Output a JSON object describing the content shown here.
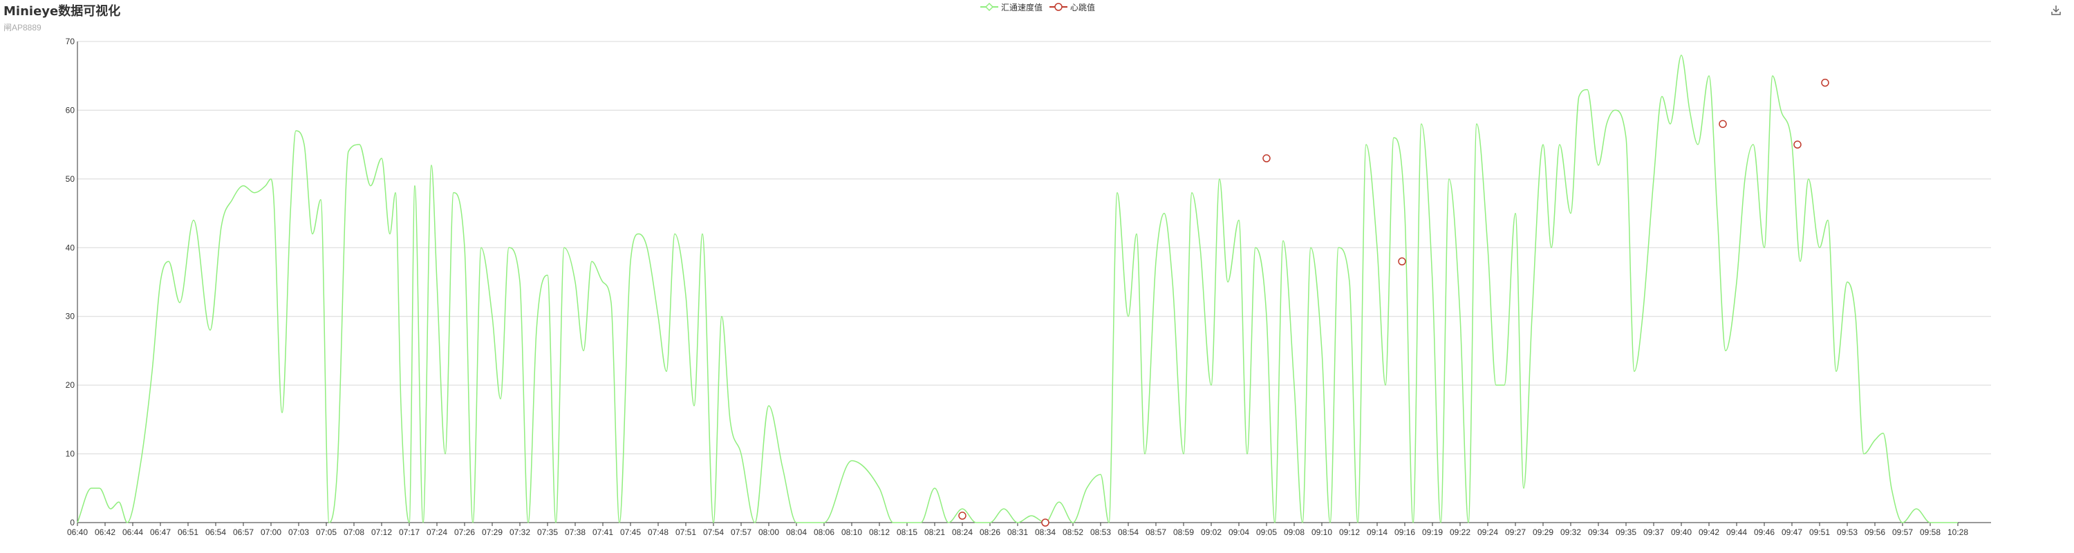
{
  "header": {
    "title": "Minieye数据可视化",
    "subtitle": "闸AP8889"
  },
  "legend": [
    {
      "name": "汇通速度值",
      "color": "#90ee7e",
      "marker": "diamond"
    },
    {
      "name": "心跳值",
      "color": "#c0392b",
      "marker": "circle"
    }
  ],
  "toolbar": {
    "download_icon": "download-icon"
  },
  "chart_data": {
    "type": "line",
    "ylim": [
      0,
      70
    ],
    "yticks": [
      0,
      10,
      20,
      30,
      40,
      50,
      60,
      70
    ],
    "xlabels": [
      "06:40",
      "06:42",
      "06:44",
      "06:47",
      "06:51",
      "06:54",
      "06:57",
      "07:00",
      "07:03",
      "07:05",
      "07:08",
      "07:12",
      "07:17",
      "07:24",
      "07:26",
      "07:29",
      "07:32",
      "07:35",
      "07:38",
      "07:41",
      "07:45",
      "07:48",
      "07:51",
      "07:54",
      "07:57",
      "08:00",
      "08:04",
      "08:06",
      "08:10",
      "08:12",
      "08:15",
      "08:21",
      "08:24",
      "08:26",
      "08:31",
      "08:34",
      "08:52",
      "08:53",
      "08:54",
      "08:57",
      "08:59",
      "09:02",
      "09:04",
      "09:05",
      "09:08",
      "09:10",
      "09:12",
      "09:14",
      "09:16",
      "09:19",
      "09:22",
      "09:24",
      "09:27",
      "09:29",
      "09:32",
      "09:34",
      "09:35",
      "09:37",
      "09:40",
      "09:42",
      "09:44",
      "09:46",
      "09:47",
      "09:51",
      "09:53",
      "09:56",
      "09:57",
      "09:58",
      "10:28"
    ],
    "grid": true,
    "series": [
      {
        "name": "汇通速度值",
        "color": "#90ee7e",
        "x_index_range": [
          0,
          68
        ],
        "x": [
          0,
          0.5,
          0.8,
          1.2,
          1.5,
          1.8,
          2.3,
          2.7,
          3.0,
          3.3,
          3.7,
          4.2,
          4.8,
          5.2,
          5.6,
          6.0,
          6.4,
          6.8,
          7.0,
          7.1,
          7.4,
          7.7,
          7.9,
          8.2,
          8.5,
          8.8,
          9.1,
          9.4,
          9.8,
          10.2,
          10.6,
          11.0,
          11.3,
          11.5,
          11.7,
          12.0,
          12.2,
          12.5,
          12.8,
          13.0,
          13.3,
          13.6,
          14.0,
          14.3,
          14.6,
          15.0,
          15.3,
          15.6,
          16.0,
          16.3,
          16.6,
          17.0,
          17.3,
          17.6,
          18.0,
          18.3,
          18.6,
          19.0,
          19.3,
          19.6,
          20.0,
          20.3,
          20.6,
          21.0,
          21.3,
          21.6,
          22.0,
          22.3,
          22.6,
          23.0,
          23.3,
          23.6,
          24.0,
          24.5,
          25.0,
          25.5,
          26.0,
          27.0,
          28.0,
          29.0,
          29.5,
          30.0,
          30.5,
          31.0,
          31.5,
          32.0,
          32.5,
          33.0,
          33.5,
          34.0,
          34.5,
          35.0,
          35.5,
          36.0,
          36.5,
          37.0,
          37.3,
          37.6,
          38.0,
          38.3,
          38.6,
          39.0,
          39.3,
          39.6,
          40.0,
          40.3,
          40.6,
          41.0,
          41.3,
          41.6,
          42.0,
          42.3,
          42.6,
          43.0,
          43.3,
          43.6,
          44.0,
          44.3,
          44.6,
          45.0,
          45.3,
          45.6,
          46.0,
          46.3,
          46.6,
          47.0,
          47.3,
          47.6,
          48.0,
          48.3,
          48.6,
          49.0,
          49.3,
          49.6,
          50.0,
          50.3,
          50.6,
          51.0,
          51.3,
          51.6,
          52.0,
          52.3,
          52.6,
          53.0,
          53.3,
          53.6,
          54.0,
          54.3,
          54.6,
          55.0,
          55.3,
          55.6,
          56.0,
          56.3,
          56.6,
          57.0,
          57.3,
          57.6,
          58.0,
          58.3,
          58.6,
          59.0,
          59.3,
          59.6,
          60.0,
          60.3,
          60.6,
          61.0,
          61.3,
          61.6,
          62.0,
          62.3,
          62.6,
          63.0,
          63.3,
          63.6,
          64.0,
          64.3,
          64.6,
          65.0,
          65.3,
          65.6,
          66.0,
          66.5,
          67.0,
          68.0
        ],
        "values": [
          0,
          5,
          5,
          2,
          3,
          0,
          9,
          22,
          35,
          38,
          32,
          44,
          28,
          43,
          47,
          49,
          48,
          49,
          50,
          47,
          16,
          45,
          57,
          55,
          42,
          47,
          0,
          8,
          54,
          55,
          49,
          53,
          42,
          48,
          17,
          0,
          49,
          0,
          52,
          35,
          10,
          48,
          40,
          0,
          40,
          30,
          18,
          40,
          35,
          0,
          28,
          36,
          0,
          40,
          35,
          25,
          38,
          35,
          32,
          0,
          38,
          42,
          40,
          30,
          22,
          42,
          33,
          17,
          42,
          0,
          30,
          15,
          10,
          0,
          17,
          8,
          0,
          0,
          9,
          5,
          0,
          0,
          0,
          5,
          0,
          2,
          0,
          0,
          2,
          0,
          1,
          0,
          3,
          0,
          5,
          7,
          0,
          48,
          30,
          42,
          10,
          38,
          45,
          35,
          10,
          48,
          40,
          20,
          50,
          35,
          44,
          10,
          40,
          30,
          0,
          41,
          20,
          0,
          40,
          25,
          0,
          40,
          35,
          0,
          55,
          40,
          20,
          56,
          45,
          0,
          58,
          35,
          0,
          50,
          30,
          0,
          58,
          40,
          20,
          20,
          45,
          5,
          30,
          55,
          40,
          55,
          45,
          62,
          63,
          52,
          58,
          60,
          56,
          22,
          30,
          50,
          62,
          58,
          68,
          60,
          55,
          65,
          45,
          25,
          35,
          50,
          55,
          40,
          65,
          60,
          55,
          38,
          50,
          40,
          44,
          22,
          35,
          30,
          10,
          12,
          13,
          5,
          0,
          2,
          0,
          0
        ],
        "smooth": "monotone-cubic"
      },
      {
        "name": "心跳值",
        "color": "#c0392b",
        "marker": "circle",
        "points": [
          {
            "x": 32,
            "y": 1
          },
          {
            "x": 35,
            "y": 0
          },
          {
            "x": 43,
            "y": 53
          },
          {
            "x": 47.9,
            "y": 38
          },
          {
            "x": 59.5,
            "y": 58
          },
          {
            "x": 62.2,
            "y": 55
          },
          {
            "x": 63.2,
            "y": 64
          }
        ]
      }
    ]
  }
}
